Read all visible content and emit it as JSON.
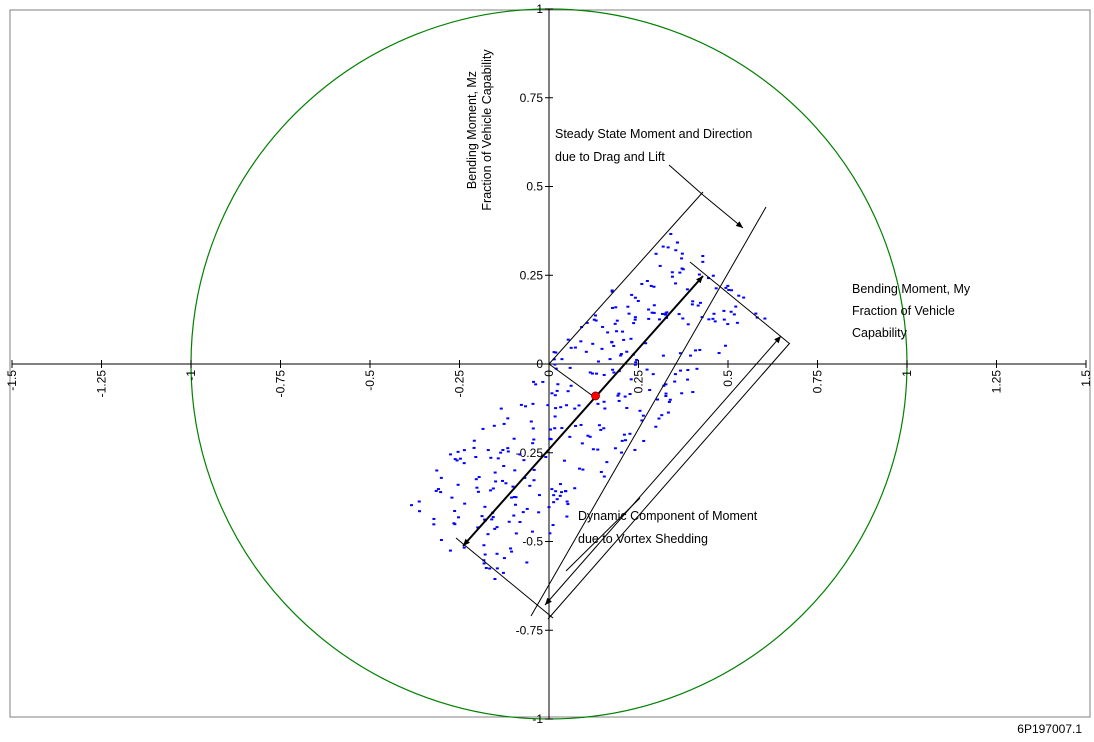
{
  "figure_id": "6P197007.1",
  "chart_data": {
    "type": "scatter",
    "title": "",
    "x_axis": {
      "label_lines": [
        "Bending Moment, My",
        "Fraction of Vehicle",
        "Capability"
      ],
      "range": [
        -1.5,
        1.5
      ],
      "ticks": [
        -1.5,
        -1.25,
        -1,
        -0.75,
        -0.5,
        -0.25,
        0,
        0.25,
        0.5,
        0.75,
        1,
        1.25,
        1.5
      ],
      "tick_labels": [
        "-1.5",
        "-1.25",
        "-1",
        "-0.75",
        "-0.5",
        "-0.25",
        "0",
        "0.25",
        "0.5",
        "0.75",
        "1",
        "1.25",
        "1.5"
      ]
    },
    "y_axis": {
      "label_lines": [
        "Bending Moment, Mz",
        "Fraction of Vehicle Capability"
      ],
      "range": [
        -1,
        1
      ],
      "ticks": [
        -1,
        -0.75,
        -0.5,
        -0.25,
        0,
        0.25,
        0.5,
        0.75,
        1
      ],
      "tick_labels": [
        "-1",
        "-0.75",
        "-0.5",
        "-0.25",
        "0",
        "0.25",
        "0.5",
        "0.75",
        "1"
      ]
    },
    "grid": false,
    "legend": "none",
    "capability_circle": {
      "radius": 1,
      "color": "#008000"
    },
    "steady_state_point": {
      "x": 0.13,
      "y": -0.09,
      "color": "#ff0000"
    },
    "scatter_points": {
      "color": "#0000ff",
      "count": 340,
      "distribution": "elongated band from about (-0.27, -0.52) to (0.48, 0.27), direction about 45 degrees, width about 0.35",
      "seed": 12345
    },
    "annotations": [
      {
        "name": "steady-state",
        "lines": [
          "Steady State Moment and Direction",
          "due to Drag and Lift"
        ]
      },
      {
        "name": "dynamic-component",
        "lines": [
          "Dynamic Component of Moment",
          "due to Vortex Shedding"
        ]
      }
    ],
    "colors": {
      "axes": "#000000",
      "circle": "#008000",
      "points": "#0000ff",
      "center": "#ff0000",
      "frame": "#808080"
    }
  }
}
